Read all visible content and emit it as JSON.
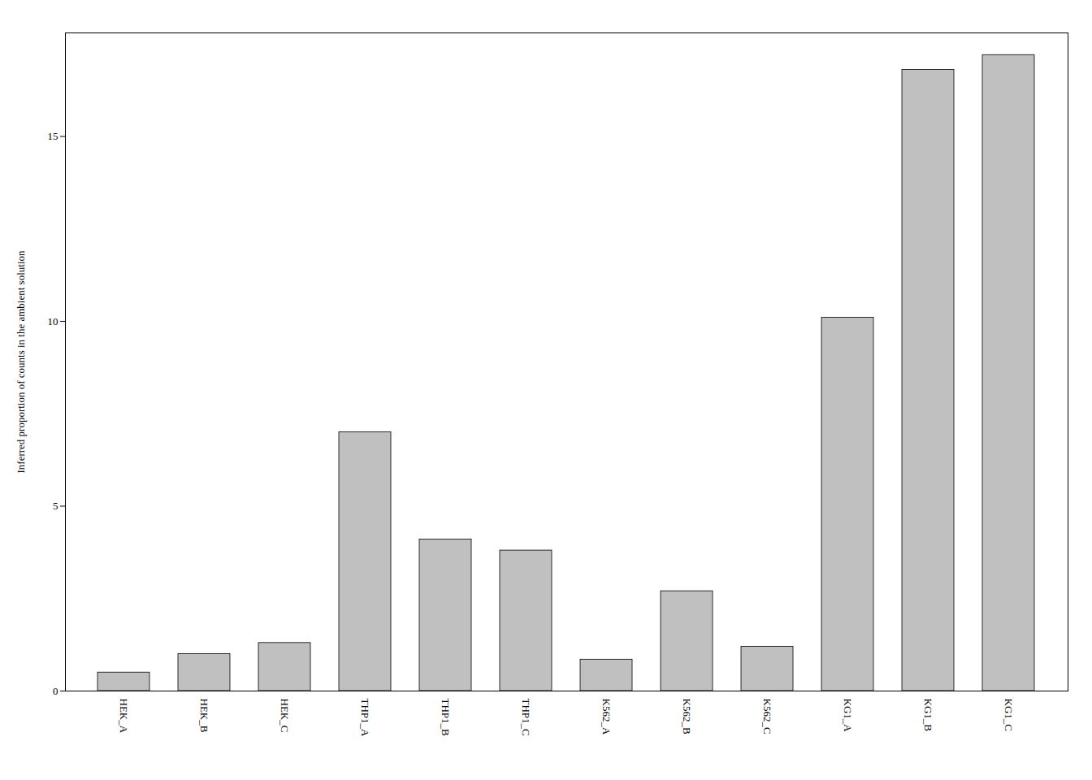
{
  "chart_data": {
    "type": "bar",
    "categories": [
      "HEK_A",
      "HEK_B",
      "HEK_C",
      "THP1_A",
      "THP1_B",
      "THP1_C",
      "K562_A",
      "K562_B",
      "K562_C",
      "KG1_A",
      "KG1_B",
      "KG1_C"
    ],
    "values": [
      0.5,
      1.0,
      1.3,
      7.0,
      4.1,
      3.8,
      0.85,
      2.7,
      1.2,
      10.1,
      16.8,
      17.2
    ],
    "color": "#c0c0c0",
    "ylabel": "Inferred proportion of counts in the ambient solution",
    "ylim": [
      0,
      17.8
    ],
    "yticks": [
      0,
      5,
      10,
      15
    ],
    "grid": false
  }
}
